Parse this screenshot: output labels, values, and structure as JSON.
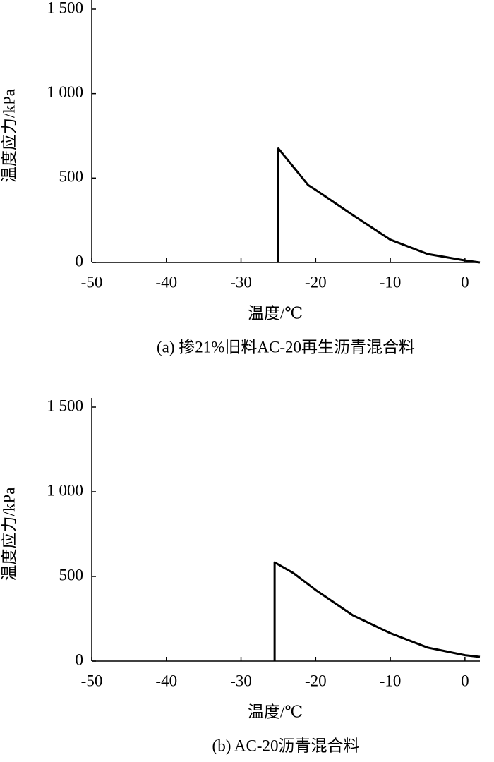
{
  "chart_data": [
    {
      "type": "line",
      "x_label": "温度/℃",
      "y_label": "温度应力/kPa",
      "caption": "(a) 掺21%旧料AC-20再生沥青混合料",
      "x": [
        -25,
        -25,
        -21,
        -20,
        -15,
        -10,
        -5,
        0,
        2
      ],
      "series": [
        {
          "color": "#000000",
          "values": [
            0,
            675,
            458,
            430,
            280,
            135,
            50,
            12,
            0
          ]
        }
      ],
      "xlim": [
        -50,
        2
      ],
      "ylim": [
        0,
        1500
      ],
      "xticks": [
        -50,
        -40,
        -30,
        -20,
        -10,
        0
      ],
      "yticks": [
        0,
        500,
        {
          "value": 1000,
          "label": "1 000"
        },
        {
          "value": 1500,
          "label": "1 500"
        }
      ]
    },
    {
      "type": "line",
      "x_label": "温度/℃",
      "y_label": "温度应力/kPa",
      "caption": "(b) AC-20沥青混合料",
      "x": [
        -25.5,
        -25.5,
        -23,
        -20,
        -15,
        -10,
        -5,
        0,
        2
      ],
      "series": [
        {
          "color": "#000000",
          "values": [
            0,
            583,
            520,
            420,
            270,
            165,
            80,
            35,
            25
          ]
        }
      ],
      "xlim": [
        -50,
        2
      ],
      "ylim": [
        0,
        1500
      ],
      "xticks": [
        -50,
        -40,
        -30,
        -20,
        -10,
        0
      ],
      "yticks": [
        0,
        500,
        {
          "value": 1000,
          "label": "1 000"
        },
        {
          "value": 1500,
          "label": "1 500"
        }
      ]
    }
  ]
}
